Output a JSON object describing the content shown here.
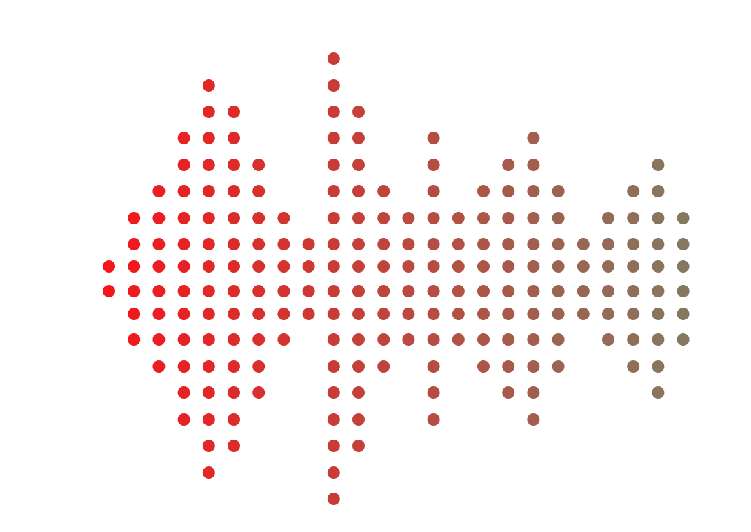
{
  "chart_data": {
    "type": "scatter",
    "title": "",
    "xlabel": "",
    "ylabel": "",
    "grid": false,
    "legend": "none",
    "column_counts": [
      2,
      6,
      8,
      12,
      16,
      14,
      10,
      6,
      4,
      18,
      14,
      8,
      6,
      12,
      6,
      8,
      10,
      12,
      8,
      4,
      6,
      8,
      10,
      6
    ],
    "color_start": "#f5161b",
    "color_end": "#857860"
  }
}
